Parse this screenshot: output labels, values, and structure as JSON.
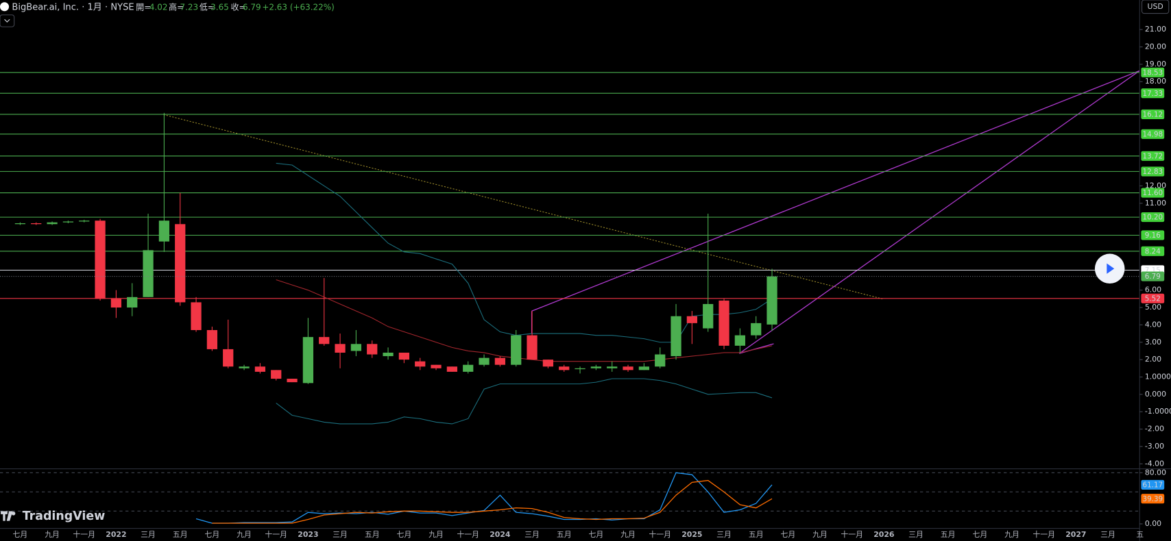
{
  "header": {
    "symbol": "BigBear.ai, Inc. · 1月 · NYSE",
    "open_label": "開=",
    "high_label": "高=",
    "low_label": "低=",
    "close_label": "收=",
    "change": "+2.63 (+63.22%)",
    "currency": "USD",
    "watermark": "TradingView"
  },
  "chart_data": {
    "type": "candlestick",
    "categories": [
      "七月",
      null,
      "九月",
      null,
      "十一月",
      null,
      "2022",
      null,
      "三月",
      null,
      "五月",
      null,
      "七月",
      null,
      "九月",
      null,
      "十一月",
      null,
      "2023",
      null,
      "三月",
      null,
      "五月",
      null,
      "七月",
      null,
      "九月",
      null,
      "十一月",
      null,
      "2024",
      null,
      "三月",
      null,
      "五月",
      null,
      "七月",
      null,
      "九月",
      null,
      "十一月",
      null,
      "2025",
      null,
      "三月",
      null,
      "五月",
      null,
      "七月",
      null,
      "九月",
      null,
      "十一月",
      null,
      "2026",
      null,
      "三月",
      null,
      "五月",
      null,
      "七月",
      null,
      "九月",
      null,
      "十一月",
      null,
      "2027",
      null,
      "三月",
      null,
      "五"
    ],
    "open": [
      9.8,
      9.85,
      9.8,
      9.9,
      9.95,
      10.0,
      5.5,
      5.0,
      5.6,
      8.8,
      9.8,
      5.3,
      3.7,
      2.6,
      1.5,
      1.6,
      1.4,
      0.9,
      0.65,
      3.3,
      2.9,
      2.5,
      2.9,
      2.2,
      2.4,
      1.9,
      1.7,
      1.6,
      1.3,
      1.7,
      2.1,
      1.7,
      3.4,
      2.0,
      1.6,
      1.45,
      1.5,
      1.5,
      1.6,
      1.4,
      1.6,
      2.2,
      4.5,
      3.8,
      5.4,
      2.8,
      3.4,
      4.02,
      null,
      null,
      null,
      null,
      null,
      null,
      null,
      null,
      null,
      null,
      null,
      null,
      null,
      null,
      null,
      null,
      null,
      null,
      null,
      null,
      null,
      null,
      null
    ],
    "high": [
      9.9,
      9.9,
      9.95,
      10.0,
      10.05,
      10.1,
      6.0,
      6.4,
      10.4,
      16.2,
      11.6,
      5.6,
      3.9,
      4.3,
      1.7,
      1.8,
      1.4,
      0.9,
      4.4,
      6.7,
      3.5,
      3.7,
      3.1,
      2.7,
      2.4,
      2.1,
      1.7,
      1.6,
      1.9,
      2.3,
      2.2,
      3.7,
      4.8,
      2.0,
      1.7,
      1.6,
      1.7,
      1.9,
      1.7,
      1.8,
      2.7,
      5.2,
      4.8,
      10.4,
      5.5,
      3.8,
      4.5,
      7.23,
      null,
      null,
      null,
      null,
      null,
      null,
      null,
      null,
      null,
      null,
      null,
      null,
      null,
      null,
      null,
      null,
      null,
      null,
      null,
      null,
      null,
      null,
      null
    ],
    "low": [
      9.75,
      9.75,
      9.75,
      9.85,
      9.9,
      5.4,
      4.4,
      4.5,
      5.6,
      8.2,
      5.1,
      3.6,
      2.5,
      1.5,
      1.4,
      1.2,
      0.8,
      0.7,
      0.6,
      2.8,
      1.5,
      2.2,
      2.1,
      2.0,
      1.8,
      1.4,
      1.4,
      1.3,
      1.2,
      1.6,
      1.6,
      1.6,
      2.0,
      1.5,
      1.3,
      1.2,
      1.4,
      1.3,
      1.3,
      1.4,
      1.5,
      2.0,
      2.9,
      3.6,
      2.6,
      2.4,
      3.2,
      3.65,
      null,
      null,
      null,
      null,
      null,
      null,
      null,
      null,
      null,
      null,
      null,
      null,
      null,
      null,
      null,
      null,
      null,
      null,
      null,
      null,
      null,
      null,
      null
    ],
    "close": [
      9.85,
      9.8,
      9.9,
      9.95,
      10.0,
      5.5,
      5.0,
      5.6,
      8.3,
      10.0,
      5.3,
      3.7,
      2.6,
      1.6,
      1.6,
      1.3,
      0.9,
      0.7,
      3.3,
      2.9,
      2.4,
      2.9,
      2.3,
      2.4,
      2.0,
      1.6,
      1.5,
      1.3,
      1.7,
      2.1,
      1.7,
      3.4,
      2.0,
      1.6,
      1.4,
      1.5,
      1.6,
      1.6,
      1.4,
      1.6,
      2.3,
      4.5,
      4.1,
      5.2,
      2.8,
      3.4,
      4.1,
      6.79,
      null,
      null,
      null,
      null,
      null,
      null,
      null,
      null,
      null,
      null,
      null,
      null,
      null,
      null,
      null,
      null,
      null,
      null,
      null,
      null,
      null,
      null,
      null
    ],
    "up_color": "#4caf50",
    "down_color": "#f23645",
    "ylim": [
      -4.2,
      22.7
    ],
    "yticks": [
      {
        "value": 21,
        "label": "21.00"
      },
      {
        "value": 20,
        "label": "20.00"
      },
      {
        "value": 19,
        "label": "19.00"
      },
      {
        "value": 18,
        "label": "18.00"
      },
      {
        "value": 12,
        "label": "12.00"
      },
      {
        "value": 11,
        "label": "11.00"
      },
      {
        "value": 6,
        "label": "6.00"
      },
      {
        "value": 5,
        "label": "5.00"
      },
      {
        "value": 4,
        "label": "4.00"
      },
      {
        "value": 3,
        "label": "3.00"
      },
      {
        "value": 2,
        "label": "2.00"
      },
      {
        "value": 1,
        "label": "1.0000"
      },
      {
        "value": 0,
        "label": "0.000"
      },
      {
        "value": -1,
        "label": "-1.0000"
      },
      {
        "value": -2,
        "label": "-2.00"
      },
      {
        "value": -3,
        "label": "-3.00"
      },
      {
        "value": -4,
        "label": "-4.00"
      }
    ],
    "bands": [
      {
        "color": "#1b6f7e",
        "values": [
          null,
          null,
          null,
          null,
          null,
          null,
          null,
          null,
          null,
          null,
          null,
          null,
          null,
          null,
          null,
          null,
          13.3,
          13.2,
          12.6,
          12.0,
          11.4,
          10.5,
          9.6,
          8.7,
          8.2,
          8.1,
          7.8,
          7.5,
          6.4,
          4.3,
          3.6,
          3.4,
          3.5,
          3.5,
          3.5,
          3.5,
          3.4,
          3.4,
          3.3,
          3.2,
          3.0,
          3.0,
          4.5,
          4.6,
          4.6,
          4.7,
          4.9,
          5.5,
          null,
          null,
          null,
          null,
          null,
          null,
          null,
          null,
          null,
          null,
          null,
          null,
          null,
          null,
          null,
          null,
          null,
          null,
          null,
          null,
          null,
          null,
          null
        ]
      },
      {
        "color": "#a3262d",
        "values": [
          null,
          null,
          null,
          null,
          null,
          null,
          null,
          null,
          null,
          null,
          null,
          null,
          null,
          null,
          null,
          null,
          6.6,
          6.3,
          6.0,
          5.6,
          5.2,
          4.8,
          4.4,
          3.9,
          3.6,
          3.3,
          3.0,
          2.7,
          2.5,
          2.4,
          2.2,
          2.1,
          2.0,
          1.9,
          1.9,
          1.9,
          1.9,
          1.9,
          1.9,
          1.9,
          2.0,
          2.1,
          2.2,
          2.3,
          2.4,
          2.4,
          2.6,
          2.8,
          null,
          null,
          null,
          null,
          null,
          null,
          null,
          null,
          null,
          null,
          null,
          null,
          null,
          null,
          null,
          null,
          null,
          null,
          null,
          null,
          null,
          null,
          null
        ]
      },
      {
        "color": "#1b6f7e",
        "values": [
          null,
          null,
          null,
          null,
          null,
          null,
          null,
          null,
          null,
          null,
          null,
          null,
          null,
          null,
          null,
          null,
          -0.5,
          -1.2,
          -1.4,
          -1.6,
          -1.7,
          -1.7,
          -1.7,
          -1.6,
          -1.3,
          -1.4,
          -1.6,
          -1.7,
          -1.4,
          0.3,
          0.6,
          0.6,
          0.6,
          0.6,
          0.6,
          0.6,
          0.7,
          0.9,
          0.9,
          0.9,
          0.8,
          0.6,
          0.3,
          0.0,
          0.05,
          0.1,
          0.1,
          -0.2,
          null,
          null,
          null,
          null,
          null,
          null,
          null,
          null,
          null,
          null,
          null,
          null,
          null,
          null,
          null,
          null,
          null,
          null,
          null,
          null,
          null,
          null,
          null
        ]
      }
    ],
    "levels": [
      {
        "value": 18.53,
        "color": "#4caf50",
        "label_color": "#43d13a",
        "text_color": "#000000"
      },
      {
        "value": 17.33,
        "color": "#4caf50",
        "label_color": "#43d13a",
        "text_color": "#000000"
      },
      {
        "value": 16.12,
        "color": "#4caf50",
        "label_color": "#43d13a",
        "text_color": "#000000"
      },
      {
        "value": 14.98,
        "color": "#4caf50",
        "label_color": "#43d13a",
        "text_color": "#000000"
      },
      {
        "value": 13.72,
        "color": "#4caf50",
        "label_color": "#43d13a",
        "text_color": "#000000"
      },
      {
        "value": 12.83,
        "color": "#4caf50",
        "label_color": "#43d13a",
        "text_color": "#000000"
      },
      {
        "value": 11.6,
        "label": "11.60",
        "color": "#4caf50",
        "label_color": "#43d13a",
        "text_color": "#000000"
      },
      {
        "value": 10.2,
        "label": "10.20",
        "color": "#4caf50",
        "label_color": "#43d13a",
        "text_color": "#000000"
      },
      {
        "value": 9.16,
        "color": "#4caf50",
        "label_color": "#43d13a",
        "text_color": "#000000"
      },
      {
        "value": 8.24,
        "color": "#4caf50",
        "label_color": "#43d13a",
        "text_color": "#000000"
      },
      {
        "value": 7.15,
        "color": "#d1d4dc",
        "label_color": "#ffffff",
        "text_color": "#000000"
      },
      {
        "value": 5.52,
        "color": "#f23645",
        "label_color": "#f23645",
        "text_color": "#ffffff"
      }
    ],
    "last_price_color": "#4caf50",
    "oscillator": {
      "ylim": [
        0,
        85
      ],
      "yticks": [
        {
          "value": 80,
          "label": "80.00"
        },
        {
          "value": 0,
          "label": "0.00"
        }
      ],
      "guides": [
        80,
        50,
        20
      ],
      "series": [
        {
          "color": "#2196f3",
          "label_color": "#2196f3",
          "values": [
            null,
            null,
            null,
            null,
            null,
            null,
            null,
            null,
            null,
            null,
            null,
            8,
            1,
            1,
            2,
            2,
            2,
            3,
            18,
            16,
            17,
            16,
            18,
            15,
            20,
            17,
            17,
            13,
            17,
            21,
            45,
            18,
            16,
            12,
            7,
            7,
            8,
            6,
            8,
            8,
            22,
            80,
            77,
            50,
            18,
            22,
            32,
            61.17,
            null,
            null,
            null,
            null,
            null,
            null,
            null,
            null,
            null,
            null,
            null,
            null,
            null,
            null,
            null,
            null,
            null,
            null,
            null,
            null,
            null,
            null,
            null
          ]
        },
        {
          "color": "#ff6d00",
          "label_color": "#ff6d00",
          "values": [
            null,
            null,
            null,
            null,
            null,
            null,
            null,
            null,
            null,
            null,
            null,
            null,
            1,
            1,
            1,
            1,
            1,
            1,
            7,
            14,
            16,
            18,
            17,
            19,
            20,
            20,
            19,
            18,
            18,
            20,
            22,
            25,
            24,
            18,
            10,
            8,
            7,
            8,
            8,
            9,
            18,
            45,
            65,
            68,
            50,
            30,
            25,
            39.39,
            null,
            null,
            null,
            null,
            null,
            null,
            null,
            null,
            null,
            null,
            null,
            null,
            null,
            null,
            null,
            null,
            null,
            null,
            null,
            null,
            null,
            null,
            null
          ]
        }
      ]
    }
  }
}
